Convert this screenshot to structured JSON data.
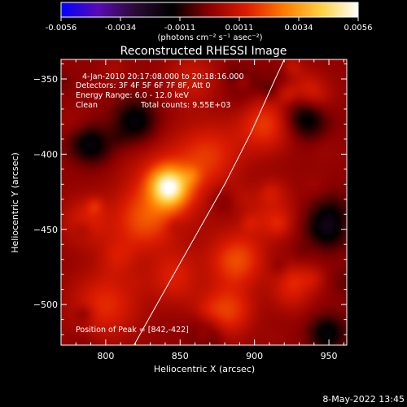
{
  "chart_data": {
    "type": "heatmap",
    "title": "Reconstructed RHESSI Image",
    "xlabel": "Heliocentric X (arcsec)",
    "ylabel": "Heliocentric Y (arcsec)",
    "xlim": [
      770,
      962
    ],
    "ylim": [
      -527,
      -337
    ],
    "x_ticks": [
      800,
      850,
      900,
      950
    ],
    "y_ticks": [
      -350,
      -400,
      -450,
      -500
    ],
    "colorbar": {
      "range": [
        -0.0056,
        0.0056
      ],
      "ticks": [
        "-0.0056",
        "-0.0034",
        "-0.0011",
        "0.0011",
        "0.0034",
        "0.0056"
      ],
      "unit_label": "(photons cm⁻² s⁻¹ asec⁻²)",
      "colormap": [
        "#0000ff",
        "#5a0ab4",
        "#2a0a35",
        "#000000",
        "#8a0000",
        "#dd1c00",
        "#ff7a00",
        "#ffd040",
        "#ffffff"
      ]
    },
    "annotations": {
      "time_range": "4-Jan-2010 20:17:08.000 to 20:18:16.000",
      "detectors": "Detectors: 3F 4F 5F 6F 7F 8F, Att 0",
      "energy_range": "Energy Range: 6.0 - 12.0 keV",
      "clean_label": "Clean",
      "total_counts": "Total counts: 9.55E+03",
      "peak_position": "Position of Peak = [842,-422]"
    },
    "peak": {
      "x": 842,
      "y": -422,
      "value": 0.0056
    },
    "limb_curve": [
      [
        819,
        -527
      ],
      [
        840,
        -490
      ],
      [
        860,
        -455
      ],
      [
        880,
        -420
      ],
      [
        898,
        -385
      ],
      [
        913,
        -352
      ],
      [
        920,
        -337
      ]
    ],
    "emission_sources": [
      {
        "x": 842,
        "y": -422,
        "sigma": 9,
        "value": 0.0042
      },
      {
        "x": 842,
        "y": -422,
        "sigma": 20,
        "value": 0.0014
      },
      {
        "x": 825,
        "y": -445,
        "sigma": 14,
        "value": 0.0016
      },
      {
        "x": 870,
        "y": -400,
        "sigma": 15,
        "value": 0.0014
      },
      {
        "x": 888,
        "y": -470,
        "sigma": 13,
        "value": 0.002
      },
      {
        "x": 880,
        "y": -505,
        "sigma": 12,
        "value": 0.0018
      },
      {
        "x": 907,
        "y": -380,
        "sigma": 13,
        "value": 0.0017
      },
      {
        "x": 912,
        "y": -440,
        "sigma": 11,
        "value": 0.0013
      },
      {
        "x": 800,
        "y": -500,
        "sigma": 16,
        "value": 0.0015
      },
      {
        "x": 787,
        "y": -445,
        "sigma": 11,
        "value": 0.0013
      },
      {
        "x": 845,
        "y": -482,
        "sigma": 12,
        "value": 0.0012
      },
      {
        "x": 858,
        "y": -350,
        "sigma": 12,
        "value": 0.001
      },
      {
        "x": 925,
        "y": -490,
        "sigma": 10,
        "value": 0.0012
      },
      {
        "x": 935,
        "y": -375,
        "sigma": 10,
        "value": -0.002
      },
      {
        "x": 950,
        "y": -445,
        "sigma": 11,
        "value": -0.0022
      },
      {
        "x": 820,
        "y": -378,
        "sigma": 10,
        "value": -0.0018
      },
      {
        "x": 950,
        "y": -520,
        "sigma": 9,
        "value": -0.0018
      },
      {
        "x": 787,
        "y": -392,
        "sigma": 9,
        "value": -0.0014
      },
      {
        "x": 868,
        "y": -520,
        "sigma": 8,
        "value": -0.0012
      }
    ]
  },
  "footer": {
    "timestamp": "8-May-2022 13:45"
  }
}
